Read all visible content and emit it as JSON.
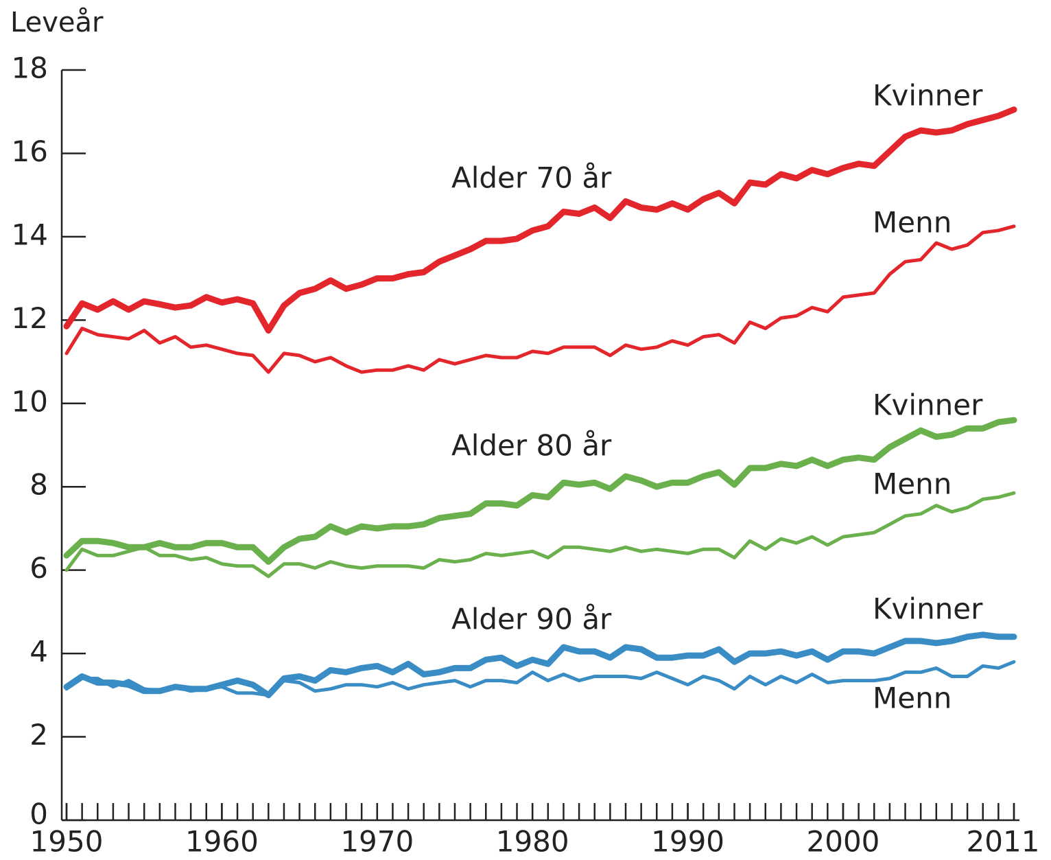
{
  "chart_data": {
    "type": "line",
    "y_label": "Leveår",
    "annotations": [
      "Alder 70 år",
      "Alder 80 år",
      "Alder 90 år"
    ],
    "x": [
      1950,
      1951,
      1952,
      1953,
      1954,
      1955,
      1956,
      1957,
      1958,
      1959,
      1960,
      1961,
      1962,
      1963,
      1964,
      1965,
      1966,
      1967,
      1968,
      1969,
      1970,
      1971,
      1972,
      1973,
      1974,
      1975,
      1976,
      1977,
      1978,
      1979,
      1980,
      1981,
      1982,
      1983,
      1984,
      1985,
      1986,
      1987,
      1988,
      1989,
      1990,
      1991,
      1992,
      1993,
      1994,
      1995,
      1996,
      1997,
      1998,
      1999,
      2000,
      2001,
      2002,
      2003,
      2004,
      2005,
      2006,
      2007,
      2008,
      2009,
      2010,
      2011
    ],
    "xlim": [
      1950,
      2011
    ],
    "xticks": [
      1950,
      1960,
      1970,
      1980,
      1990,
      2000,
      2011
    ],
    "ylim": [
      0,
      18
    ],
    "yticks": [
      0,
      2,
      4,
      6,
      8,
      10,
      12,
      14,
      16,
      18
    ],
    "series": [
      {
        "name": "Kvinner",
        "color": "#e3262b",
        "values": [
          11.85,
          12.4,
          12.25,
          12.45,
          12.25,
          12.45,
          12.38,
          12.3,
          12.35,
          12.55,
          12.42,
          12.5,
          12.4,
          11.75,
          12.35,
          12.65,
          12.75,
          12.95,
          12.75,
          12.85,
          13.0,
          13.0,
          13.1,
          13.15,
          13.4,
          13.55,
          13.7,
          13.9,
          13.9,
          13.95,
          14.15,
          14.25,
          14.6,
          14.55,
          14.7,
          14.45,
          14.85,
          14.7,
          14.65,
          14.8,
          14.65,
          14.9,
          15.05,
          14.8,
          15.3,
          15.25,
          15.5,
          15.4,
          15.6,
          15.5,
          15.65,
          15.75,
          15.7,
          16.05,
          16.4,
          16.55,
          16.5,
          16.55,
          16.7,
          16.8,
          16.9,
          17.05
        ]
      },
      {
        "name": "Menn",
        "color": "#e3262b",
        "values": [
          11.2,
          11.8,
          11.65,
          11.6,
          11.55,
          11.75,
          11.45,
          11.6,
          11.35,
          11.4,
          11.3,
          11.2,
          11.15,
          10.75,
          11.2,
          11.15,
          11.0,
          11.1,
          10.9,
          10.75,
          10.8,
          10.8,
          10.9,
          10.8,
          11.05,
          10.95,
          11.05,
          11.15,
          11.1,
          11.1,
          11.25,
          11.2,
          11.35,
          11.35,
          11.35,
          11.15,
          11.4,
          11.3,
          11.35,
          11.5,
          11.4,
          11.6,
          11.65,
          11.45,
          11.95,
          11.8,
          12.05,
          12.1,
          12.3,
          12.2,
          12.55,
          12.6,
          12.65,
          13.1,
          13.4,
          13.45,
          13.85,
          13.7,
          13.8,
          14.1,
          14.15,
          14.25
        ]
      },
      {
        "name": "Kvinner",
        "color": "#6ab04c",
        "values": [
          6.35,
          6.7,
          6.7,
          6.65,
          6.55,
          6.55,
          6.65,
          6.55,
          6.55,
          6.65,
          6.65,
          6.55,
          6.55,
          6.2,
          6.55,
          6.75,
          6.8,
          7.05,
          6.9,
          7.05,
          7.0,
          7.05,
          7.05,
          7.1,
          7.25,
          7.3,
          7.35,
          7.6,
          7.6,
          7.55,
          7.8,
          7.75,
          8.1,
          8.05,
          8.1,
          7.95,
          8.25,
          8.15,
          8.0,
          8.1,
          8.1,
          8.25,
          8.35,
          8.05,
          8.45,
          8.45,
          8.55,
          8.5,
          8.65,
          8.5,
          8.65,
          8.7,
          8.65,
          8.95,
          9.15,
          9.35,
          9.2,
          9.25,
          9.4,
          9.4,
          9.55,
          9.6
        ]
      },
      {
        "name": "Menn",
        "color": "#6ab04c",
        "values": [
          6.0,
          6.5,
          6.35,
          6.35,
          6.45,
          6.55,
          6.35,
          6.35,
          6.25,
          6.3,
          6.15,
          6.1,
          6.1,
          5.85,
          6.15,
          6.15,
          6.05,
          6.2,
          6.1,
          6.05,
          6.1,
          6.1,
          6.1,
          6.05,
          6.25,
          6.2,
          6.25,
          6.4,
          6.35,
          6.4,
          6.45,
          6.3,
          6.55,
          6.55,
          6.5,
          6.45,
          6.55,
          6.45,
          6.5,
          6.45,
          6.4,
          6.5,
          6.5,
          6.3,
          6.7,
          6.5,
          6.75,
          6.65,
          6.8,
          6.6,
          6.8,
          6.85,
          6.9,
          7.1,
          7.3,
          7.35,
          7.55,
          7.4,
          7.5,
          7.7,
          7.75,
          7.85
        ]
      },
      {
        "name": "Kvinner",
        "color": "#3a8cc4",
        "values": [
          3.2,
          3.45,
          3.3,
          3.3,
          3.25,
          3.1,
          3.1,
          3.2,
          3.15,
          3.15,
          3.25,
          3.35,
          3.25,
          3.0,
          3.4,
          3.45,
          3.35,
          3.6,
          3.55,
          3.65,
          3.7,
          3.55,
          3.75,
          3.5,
          3.55,
          3.65,
          3.65,
          3.85,
          3.9,
          3.7,
          3.85,
          3.75,
          4.15,
          4.05,
          4.05,
          3.9,
          4.15,
          4.1,
          3.9,
          3.9,
          3.95,
          3.95,
          4.1,
          3.8,
          4.0,
          4.0,
          4.05,
          3.95,
          4.05,
          3.85,
          4.05,
          4.05,
          4.0,
          4.15,
          4.3,
          4.3,
          4.25,
          4.3,
          4.4,
          4.45,
          4.4,
          4.4
        ]
      },
      {
        "name": "Menn",
        "color": "#3a8cc4",
        "values": [
          3.15,
          3.4,
          3.4,
          3.2,
          3.35,
          3.15,
          3.1,
          3.2,
          3.1,
          3.15,
          3.2,
          3.05,
          3.05,
          3.0,
          3.35,
          3.3,
          3.1,
          3.15,
          3.25,
          3.25,
          3.2,
          3.3,
          3.15,
          3.25,
          3.3,
          3.35,
          3.2,
          3.35,
          3.35,
          3.3,
          3.55,
          3.35,
          3.5,
          3.35,
          3.45,
          3.45,
          3.45,
          3.4,
          3.55,
          3.4,
          3.25,
          3.45,
          3.35,
          3.15,
          3.45,
          3.25,
          3.45,
          3.3,
          3.5,
          3.3,
          3.35,
          3.35,
          3.35,
          3.4,
          3.55,
          3.55,
          3.65,
          3.45,
          3.45,
          3.7,
          3.65,
          3.8
        ]
      }
    ]
  }
}
